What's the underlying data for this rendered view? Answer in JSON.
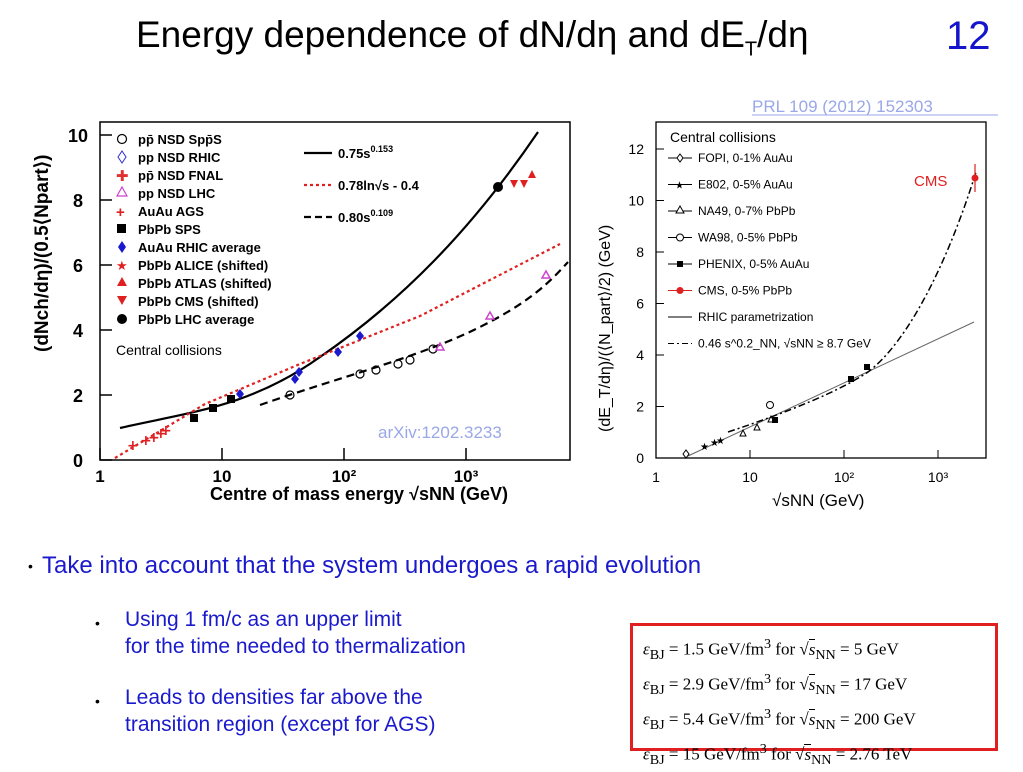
{
  "slide": {
    "title_main": "Energy dependence of dN/dη and dE",
    "title_sub": "T",
    "title_tail": "/dη",
    "page_number": "12"
  },
  "left_plot": {
    "ylabel": "(dNch/dη)/(0.5⟨Npart⟩)",
    "xlabel": "Centre of mass energy √sNN (GeV)",
    "note": "Central collisions",
    "reference": "arXiv:1202.3233",
    "y_ticks": [
      "0",
      "2",
      "4",
      "6",
      "8",
      "10"
    ],
    "x_ticks": [
      "1",
      "10",
      "10²",
      "10³"
    ],
    "legend_markers": [
      {
        "label": "pp̄ NSD Spp̄S",
        "color": "#000000",
        "icon": "open-circle"
      },
      {
        "label": "pp NSD RHIC",
        "color": "#2b2bd6",
        "icon": "open-diamond"
      },
      {
        "label": "pp̄ NSD FNAL",
        "color": "#e03030",
        "icon": "open-cross"
      },
      {
        "label": "pp NSD LHC",
        "color": "#cc44cc",
        "icon": "open-triangle"
      },
      {
        "label": "AuAu AGS",
        "color": "#e02020",
        "icon": "cross"
      },
      {
        "label": "PbPb SPS",
        "color": "#000000",
        "icon": "square"
      },
      {
        "label": "AuAu RHIC average",
        "color": "#1a1acc",
        "icon": "diamond"
      },
      {
        "label": "PbPb ALICE (shifted)",
        "color": "#e02020",
        "icon": "star"
      },
      {
        "label": "PbPb ATLAS (shifted)",
        "color": "#e02020",
        "icon": "triangle-up"
      },
      {
        "label": "PbPb CMS (shifted)",
        "color": "#e02020",
        "icon": "triangle-down"
      },
      {
        "label": "PbPb LHC average",
        "color": "#000000",
        "icon": "circle"
      }
    ],
    "legend_curves": [
      {
        "label": "0.75s",
        "sup": "0.153",
        "style": "solid",
        "color": "#000000"
      },
      {
        "label": "0.78ln√s - 0.4",
        "sup": "",
        "style": "dotted",
        "color": "#e02020"
      },
      {
        "label": "0.80s",
        "sup": "0.109",
        "style": "dashed",
        "color": "#000000"
      }
    ]
  },
  "right_plot": {
    "reference": "PRL 109 (2012) 152303",
    "ylabel": "(dE_T/dη)/(⟨N_part⟩/2) (GeV)",
    "xlabel": "√sNN (GeV)",
    "note": "Central collisions",
    "cms_label": "CMS",
    "y_ticks": [
      "0",
      "2",
      "4",
      "6",
      "8",
      "10",
      "12"
    ],
    "x_ticks": [
      "1",
      "10",
      "10²",
      "10³"
    ],
    "legend": [
      {
        "label": "FOPI, 0-1% AuAu",
        "icon": "open-diamond"
      },
      {
        "label": "E802, 0-5% AuAu",
        "icon": "star"
      },
      {
        "label": "NA49, 0-7% PbPb",
        "icon": "open-triangle"
      },
      {
        "label": "WA98, 0-5% PbPb",
        "icon": "open-circle"
      },
      {
        "label": "PHENIX, 0-5% AuAu",
        "icon": "square"
      },
      {
        "label": "CMS, 0-5% PbPb",
        "icon": "red-circle"
      },
      {
        "label": "RHIC parametrization",
        "icon": "line"
      },
      {
        "label": "0.46 s^0.2_NN, √sNN ≥ 8.7 GeV",
        "icon": "dash-dot"
      }
    ]
  },
  "bullets": {
    "main": "Take into account that the system undergoes a rapid evolution",
    "sub1_line1": "Using 1 fm/c as an upper limit",
    "sub1_line2": "for the time needed to thermalization",
    "sub2_line1": "Leads to densities far above the",
    "sub2_line2": "transition region (except for AGS)",
    "bullet_glyph": "•"
  },
  "equations": [
    {
      "lhs": "ε",
      "sub": "BJ",
      "value": "= 1.5 GeV/fm",
      "sup": "3",
      "mid": " for ",
      "root": "s",
      "rsub": "NN",
      "rhs": " = 5 GeV"
    },
    {
      "lhs": "ε",
      "sub": "BJ",
      "value": "= 2.9 GeV/fm",
      "sup": "3",
      "mid": " for ",
      "root": "s",
      "rsub": "NN",
      "rhs": " = 17 GeV"
    },
    {
      "lhs": "ε",
      "sub": "BJ",
      "value": "= 5.4 GeV/fm",
      "sup": "3",
      "mid": " for ",
      "root": "s",
      "rsub": "NN",
      "rhs": " = 200 GeV"
    },
    {
      "lhs": "ε",
      "sub": "BJ",
      "value": "= 15 GeV/fm",
      "sup": "3",
      "mid": " for ",
      "root": "s",
      "rsub": "NN",
      "rhs": " = 2.76 TeV"
    }
  ],
  "colors": {
    "title": "#000000",
    "page_number": "#1515cc",
    "bullet_text": "#1a1acc",
    "box_border": "#e02020"
  }
}
